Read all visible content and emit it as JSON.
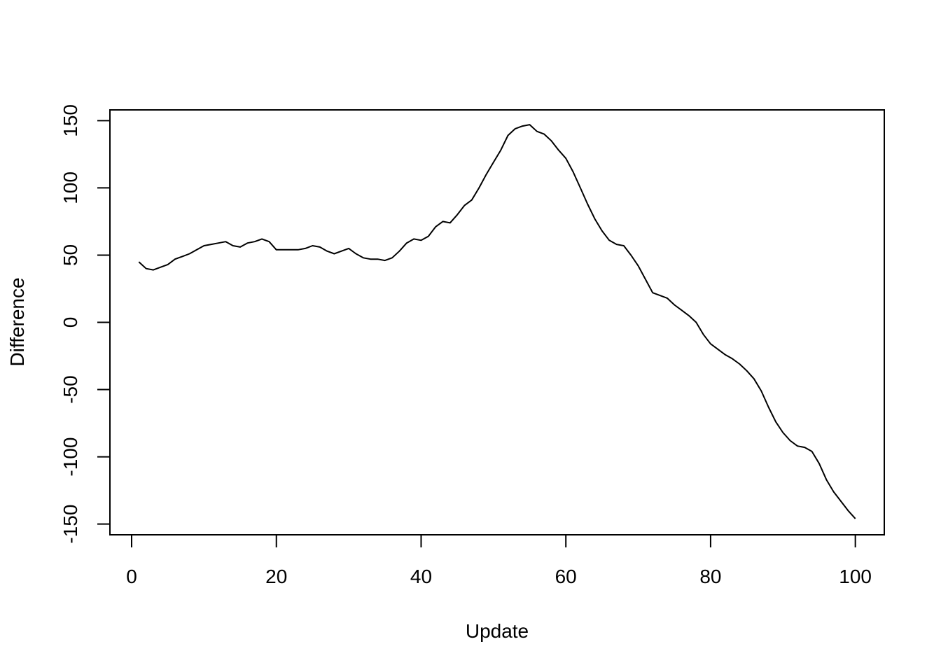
{
  "chart_data": {
    "type": "line",
    "title": "",
    "xlabel": "Update",
    "ylabel": "Difference",
    "xlim": [
      -3,
      104
    ],
    "ylim": [
      -158,
      158
    ],
    "grid": false,
    "xticks": [
      0,
      20,
      40,
      60,
      80,
      100
    ],
    "xtick_labels": [
      "0",
      "20",
      "40",
      "60",
      "80",
      "100"
    ],
    "yticks": [
      -150,
      -100,
      -50,
      0,
      50,
      100,
      150
    ],
    "ytick_labels": [
      "-150",
      "-100",
      "-50",
      "0",
      "50",
      "100",
      "150"
    ],
    "series": [
      {
        "color": "#000000",
        "x": [
          1,
          2,
          3,
          4,
          5,
          6,
          7,
          8,
          9,
          10,
          11,
          12,
          13,
          14,
          15,
          16,
          17,
          18,
          19,
          20,
          21,
          22,
          23,
          24,
          25,
          26,
          27,
          28,
          29,
          30,
          31,
          32,
          33,
          34,
          35,
          36,
          37,
          38,
          39,
          40,
          41,
          42,
          43,
          44,
          45,
          46,
          47,
          48,
          49,
          50,
          51,
          52,
          53,
          54,
          55,
          56,
          57,
          58,
          59,
          60,
          61,
          62,
          63,
          64,
          65,
          66,
          67,
          68,
          69,
          70,
          71,
          72,
          73,
          74,
          75,
          76,
          77,
          78,
          79,
          80,
          81,
          82,
          83,
          84,
          85,
          86,
          87,
          88,
          89,
          90,
          91,
          92,
          93,
          94,
          95,
          96,
          97,
          98,
          99,
          100
        ],
        "y": [
          45,
          40,
          39,
          41,
          43,
          47,
          49,
          51,
          54,
          57,
          58,
          59,
          60,
          57,
          56,
          59,
          60,
          62,
          60,
          54,
          54,
          54,
          54,
          55,
          57,
          56,
          53,
          51,
          53,
          55,
          51,
          48,
          47,
          47,
          46,
          48,
          53,
          59,
          62,
          61,
          64,
          71,
          75,
          74,
          80,
          87,
          91,
          100,
          110,
          119,
          128,
          139,
          144,
          146,
          147,
          142,
          140,
          135,
          128,
          122,
          112,
          100,
          88,
          77,
          68,
          61,
          58,
          57,
          50,
          42,
          32,
          22,
          20,
          18,
          13,
          9,
          5,
          0,
          -9,
          -16,
          -20,
          -24,
          -27,
          -31,
          -36,
          -42,
          -51,
          -63,
          -74,
          -82,
          -88,
          -92,
          -93,
          -96,
          -105,
          -117,
          -126,
          -133,
          -140,
          -146
        ]
      }
    ]
  }
}
